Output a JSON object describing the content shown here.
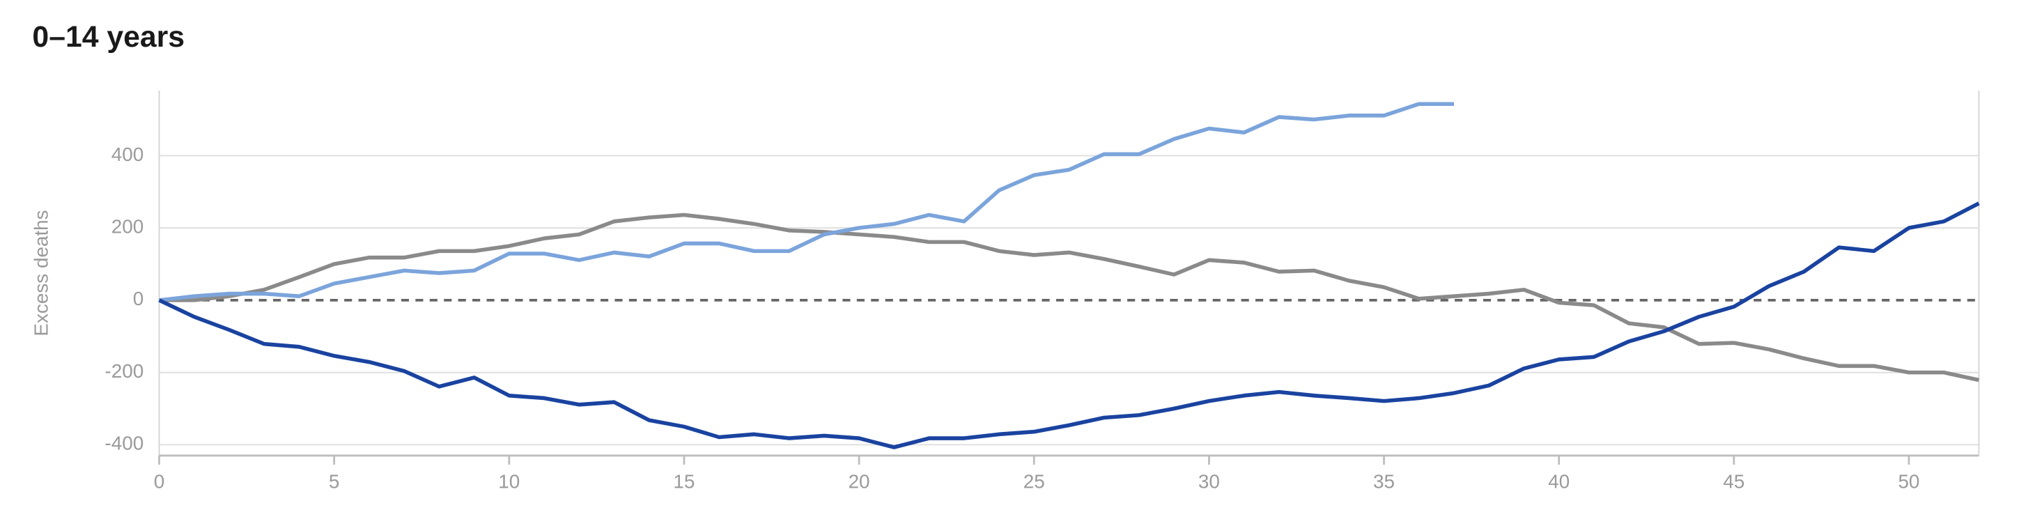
{
  "chart_data": {
    "type": "line",
    "title": "0–14 years",
    "y_label": "Excess deaths",
    "xlim": [
      0,
      52
    ],
    "xticks": [
      0,
      5,
      10,
      15,
      20,
      25,
      30,
      35,
      40,
      45,
      50
    ],
    "ylim": [
      -430,
      580
    ],
    "yticks": [
      -400,
      -200,
      0,
      200,
      400
    ],
    "grid": true,
    "zero_line": true,
    "x": [
      0,
      1,
      2,
      3,
      4,
      5,
      6,
      7,
      8,
      9,
      10,
      11,
      12,
      13,
      14,
      15,
      16,
      17,
      18,
      19,
      20,
      21,
      22,
      23,
      24,
      25,
      26,
      27,
      28,
      29,
      30,
      31,
      32,
      33,
      34,
      35,
      36,
      37,
      38,
      39,
      40,
      41,
      42,
      43,
      44,
      45,
      46,
      47,
      48,
      49,
      50,
      51,
      52
    ],
    "series": [
      {
        "color": "#8a8a8a",
        "values": [
          0,
          0,
          11,
          29,
          64,
          100,
          118,
          118,
          136,
          136,
          150,
          171,
          182,
          218,
          229,
          236,
          225,
          211,
          193,
          189,
          182,
          175,
          161,
          161,
          136,
          125,
          132,
          114,
          93,
          71,
          111,
          104,
          79,
          82,
          54,
          36,
          4,
          11,
          18,
          29,
          -7,
          -14,
          -64,
          -75,
          -121,
          -118,
          -136,
          -161,
          -182,
          -182,
          -200,
          -200,
          -221
        ]
      },
      {
        "color": "#7ba4db",
        "values": [
          0,
          11,
          18,
          18,
          11,
          46,
          64,
          82,
          75,
          82,
          129,
          129,
          111,
          132,
          121,
          157,
          157,
          136,
          136,
          182,
          200,
          211,
          236,
          218,
          304,
          346,
          361,
          404,
          404,
          446,
          475,
          464,
          507,
          500,
          511,
          511,
          543,
          543,
          null,
          null,
          null,
          null,
          null,
          null,
          null,
          null,
          null,
          null,
          null,
          null,
          null,
          null,
          null
        ]
      },
      {
        "color": "#1a43a0",
        "values": [
          0,
          -46,
          -82,
          -121,
          -129,
          -154,
          -171,
          -196,
          -239,
          -214,
          -264,
          -271,
          -289,
          -282,
          -332,
          -350,
          -379,
          -371,
          -382,
          -375,
          -382,
          -407,
          -382,
          -382,
          -371,
          -364,
          -346,
          -325,
          -318,
          -300,
          -279,
          -264,
          -254,
          -264,
          -271,
          -279,
          -271,
          -257,
          -236,
          -189,
          -164,
          -157,
          -114,
          -86,
          -46,
          -18,
          39,
          79,
          146,
          136,
          200,
          218,
          268
        ]
      }
    ]
  }
}
